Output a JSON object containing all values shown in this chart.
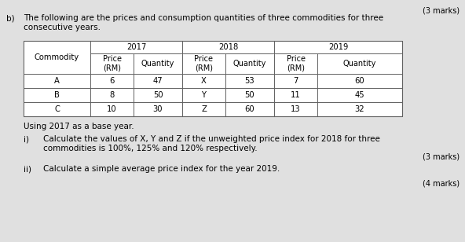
{
  "top_right_text": "(3 marks)",
  "section_label": "b)",
  "intro_text": "The following are the prices and consumption quantities of three commodities for three\nconsecutive years.",
  "base_year_text": "Using 2017 as a base year.",
  "question_i_label": "i)",
  "question_i_text": "Calculate the values of X, Y and Z if the unweighted price index for 2018 for three\ncommodities is 100%, 125% and 120% respectively.",
  "marks_i": "(3 marks)",
  "question_ii_label": "ii)",
  "question_ii_text": "Calculate a simple average price index for the year 2019.",
  "marks_ii": "(4 marks)",
  "table_rows": [
    [
      "A",
      "6",
      "47",
      "X",
      "53",
      "7",
      "60"
    ],
    [
      "B",
      "8",
      "50",
      "Y",
      "50",
      "11",
      "45"
    ],
    [
      "C",
      "10",
      "30",
      "Z",
      "60",
      "13",
      "32"
    ]
  ],
  "bg_color": "#e0e0e0",
  "text_color": "#000000",
  "font_size_body": 7.5,
  "font_size_table": 7.2,
  "font_size_small": 7.0
}
